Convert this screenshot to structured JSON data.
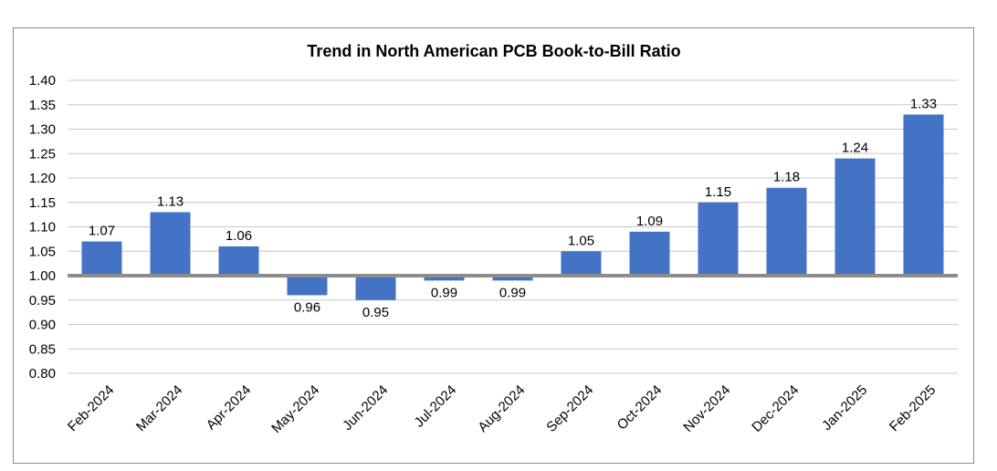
{
  "chart_data": {
    "type": "bar",
    "title": "Trend in North American PCB Book-to-Bill Ratio",
    "xlabel": "",
    "ylabel": "",
    "baseline": 1.0,
    "ylim": [
      0.8,
      1.4
    ],
    "yticks": [
      "0.80",
      "0.85",
      "0.90",
      "0.95",
      "1.00",
      "1.05",
      "1.10",
      "1.15",
      "1.20",
      "1.25",
      "1.30",
      "1.35",
      "1.40"
    ],
    "grid": true,
    "legend": "none",
    "bar_color": "#4472c4",
    "categories": [
      "Feb-2024",
      "Mar-2024",
      "Apr-2024",
      "May-2024",
      "Jun-2024",
      "Jul-2024",
      "Aug-2024",
      "Sep-2024",
      "Oct-2024",
      "Nov-2024",
      "Dec-2024",
      "Jan-2025",
      "Feb-2025"
    ],
    "values": [
      1.07,
      1.13,
      1.06,
      0.96,
      0.95,
      0.99,
      0.99,
      1.05,
      1.09,
      1.15,
      1.18,
      1.24,
      1.33
    ],
    "value_labels": [
      "1.07",
      "1.13",
      "1.06",
      "0.96",
      "0.95",
      "0.99",
      "0.99",
      "1.05",
      "1.09",
      "1.15",
      "1.18",
      "1.24",
      "1.33"
    ]
  }
}
